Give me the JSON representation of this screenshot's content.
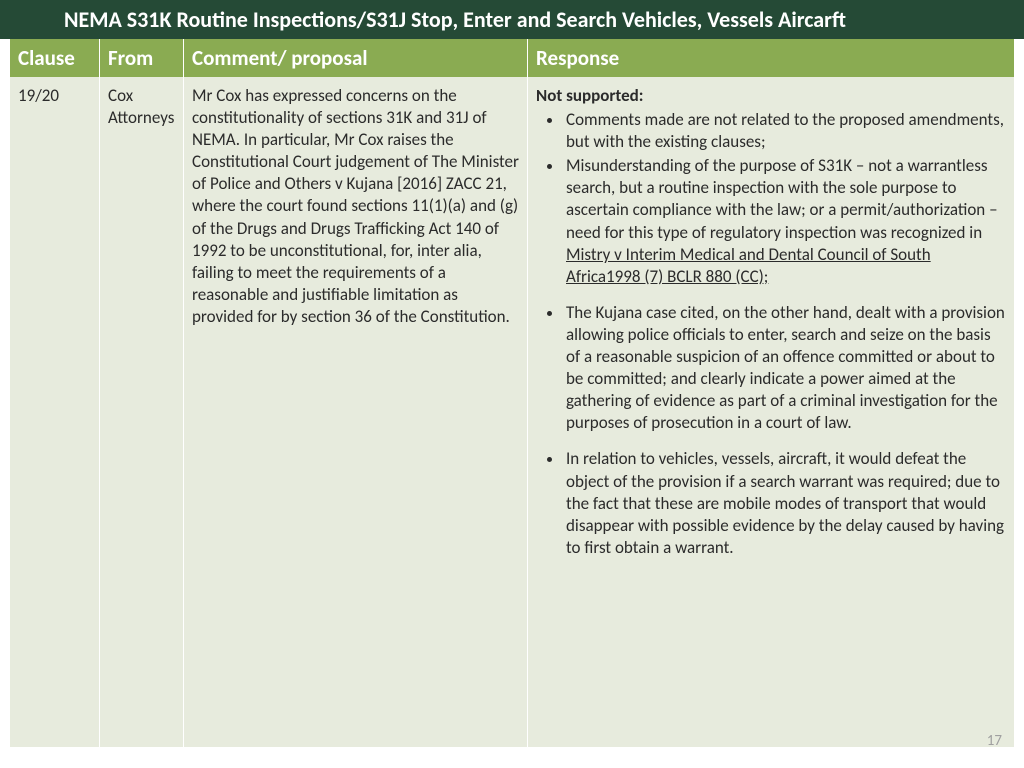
{
  "header": {
    "title": "NEMA S31K Routine Inspections/S31J Stop, Enter and Search Vehicles, Vessels Aircarft"
  },
  "table": {
    "columns": {
      "clause": "Clause",
      "from": "From",
      "comment": "Comment/ proposal",
      "response": "Response"
    },
    "row": {
      "clause": "19/20",
      "from": "Cox Attorneys",
      "comment": "Mr Cox has expressed concerns on the constitutionality of sections 31K and 31J of NEMA. In particular, Mr Cox raises the Constitutional Court judgement of The Minister of Police and Others v Kujana [2016] ZACC 21, where the court found sections 11(1)(a) and (g) of the Drugs and Drugs Trafficking Act 140 of 1992 to be unconstitutional, for, inter alia, failing to meet the requirements of a reasonable and justifiable limitation as provided for by section 36 of the Constitution.",
      "response": {
        "heading": "Not supported:",
        "bullet1": "Comments made are not related to the proposed amendments, but with the existing clauses;",
        "bullet2a": "Misunderstanding of the purpose of S31K – not a warrantless search, but a routine inspection with the sole purpose to ascertain compliance with the law; or a permit/authorization – need for this type of regulatory inspection was recognized in ",
        "bullet2b": "Mistry v Interim Medical and Dental Council of South Africa1998 (7) BCLR 880 (CC);",
        "bullet3": "The Kujana case cited, on the other hand, dealt with a provision allowing police officials to enter, search and seize on the basis of a reasonable suspicion of an offence committed or about to be committed; and clearly indicate a power aimed at the gathering of evidence as part of a criminal investigation for the purposes of prosecution in a court of law.",
        "bullet4": "In relation to vehicles, vessels, aircraft, it would defeat the object of the provision if a search warrant was required; due to the fact that these are mobile modes of transport that would disappear with possible evidence by the delay caused by having to first obtain a warrant."
      }
    }
  },
  "page_number": "17",
  "colors": {
    "header_bg": "#254a36",
    "header_text": "#ffffff",
    "th_bg": "#8aab52",
    "th_text": "#ffffff",
    "td_bg": "#e7ebdd",
    "td_text": "#2b2b2b",
    "page_num_color": "#a0a0a0"
  }
}
